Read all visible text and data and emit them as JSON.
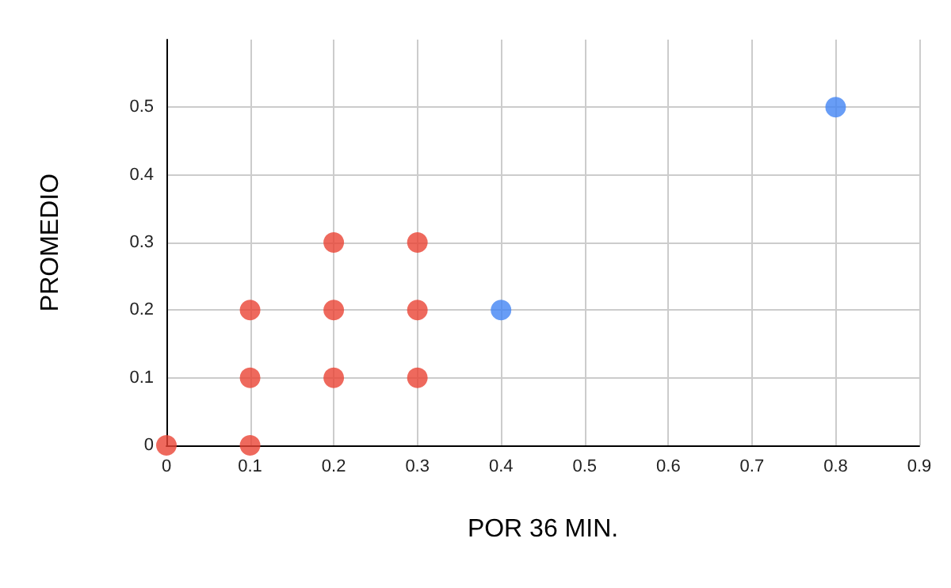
{
  "chart_data": {
    "type": "scatter",
    "xlabel": "POR 36 MIN.",
    "ylabel": "PROMEDIO",
    "series": [
      {
        "color": "#ea4335",
        "x": [
          0,
          0.1,
          0.1,
          0.1,
          0.2,
          0.2,
          0.2,
          0.3,
          0.3,
          0.3
        ],
        "values": [
          0,
          0,
          0.1,
          0.2,
          0.1,
          0.2,
          0.3,
          0.1,
          0.2,
          0.3
        ]
      },
      {
        "color": "#4285f4",
        "x": [
          0.4,
          0.8
        ],
        "values": [
          0.2,
          0.5
        ]
      }
    ],
    "xlim": [
      0,
      0.9
    ],
    "xticks": [
      0,
      0.1,
      0.2,
      0.3,
      0.4,
      0.5,
      0.6,
      0.7,
      0.8,
      0.9
    ],
    "ylim": [
      0,
      0.6
    ],
    "yticks": [
      0,
      0.1,
      0.2,
      0.3,
      0.4,
      0.5
    ],
    "grid": true,
    "marker": "circle"
  }
}
